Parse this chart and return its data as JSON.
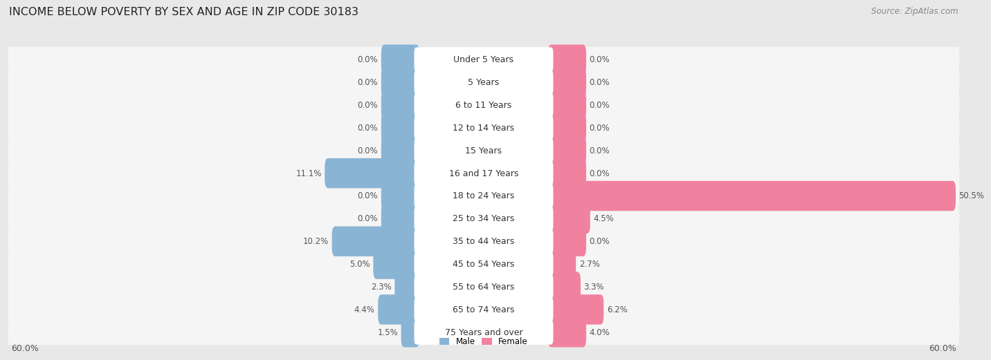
{
  "title": "INCOME BELOW POVERTY BY SEX AND AGE IN ZIP CODE 30183",
  "source": "Source: ZipAtlas.com",
  "categories": [
    "Under 5 Years",
    "5 Years",
    "6 to 11 Years",
    "12 to 14 Years",
    "15 Years",
    "16 and 17 Years",
    "18 to 24 Years",
    "25 to 34 Years",
    "35 to 44 Years",
    "45 to 54 Years",
    "55 to 64 Years",
    "65 to 74 Years",
    "75 Years and over"
  ],
  "male_values": [
    0.0,
    0.0,
    0.0,
    0.0,
    0.0,
    11.1,
    0.0,
    0.0,
    10.2,
    5.0,
    2.3,
    4.4,
    1.5
  ],
  "female_values": [
    0.0,
    0.0,
    0.0,
    0.0,
    0.0,
    0.0,
    50.5,
    4.5,
    0.0,
    2.7,
    3.3,
    6.2,
    4.0
  ],
  "male_color": "#8ab4d4",
  "female_color": "#f082a0",
  "male_label": "Male",
  "female_label": "Female",
  "xlim": 60.0,
  "background_color": "#e8e8e8",
  "row_bg_color": "#f5f5f5",
  "label_bubble_color": "#ffffff",
  "title_fontsize": 11.5,
  "source_fontsize": 8.5,
  "value_fontsize": 8.5,
  "category_fontsize": 9,
  "axis_label_fontsize": 9
}
